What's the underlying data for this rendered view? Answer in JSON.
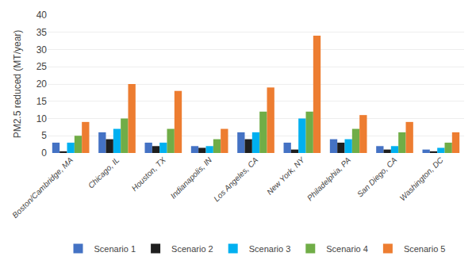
{
  "chart_data": {
    "type": "bar",
    "categories": [
      "Boston/Cambridge, MA",
      "Chicago, IL",
      "Houston, TX",
      "Indianapolis, IN",
      "Los Angeles, CA",
      "New York, NY",
      "Philadelphia, PA",
      "San Diego, CA",
      "Washington, DC"
    ],
    "series": [
      {
        "name": "Scenario 1",
        "color": "#4472C4",
        "values": [
          3.0,
          6.0,
          3.0,
          2.0,
          6.0,
          3.0,
          4.0,
          2.0,
          1.0
        ]
      },
      {
        "name": "Scenario 2",
        "color": "#1F1F1F",
        "values": [
          0.5,
          4.0,
          2.0,
          1.5,
          4.0,
          1.0,
          3.0,
          1.0,
          0.5
        ]
      },
      {
        "name": "Scenario 3",
        "color": "#00B0F0",
        "values": [
          3.0,
          7.0,
          3.0,
          2.0,
          6.0,
          10.0,
          4.0,
          2.0,
          1.5
        ]
      },
      {
        "name": "Scenario 4",
        "color": "#70AD47",
        "values": [
          5.0,
          10.0,
          7.0,
          4.0,
          12.0,
          12.0,
          7.0,
          6.0,
          3.0
        ]
      },
      {
        "name": "Scenario 5",
        "color": "#ED7D31",
        "values": [
          9.0,
          20.0,
          18.0,
          7.0,
          19.0,
          34.0,
          11.0,
          9.0,
          6.0
        ]
      }
    ],
    "ylabel": "PM2.5 reduced (MT/year)",
    "ylim": [
      0,
      40
    ],
    "yticks": [
      0,
      5,
      10,
      15,
      20,
      25,
      30,
      35,
      40
    ],
    "grid": true,
    "legend": "bottom"
  }
}
